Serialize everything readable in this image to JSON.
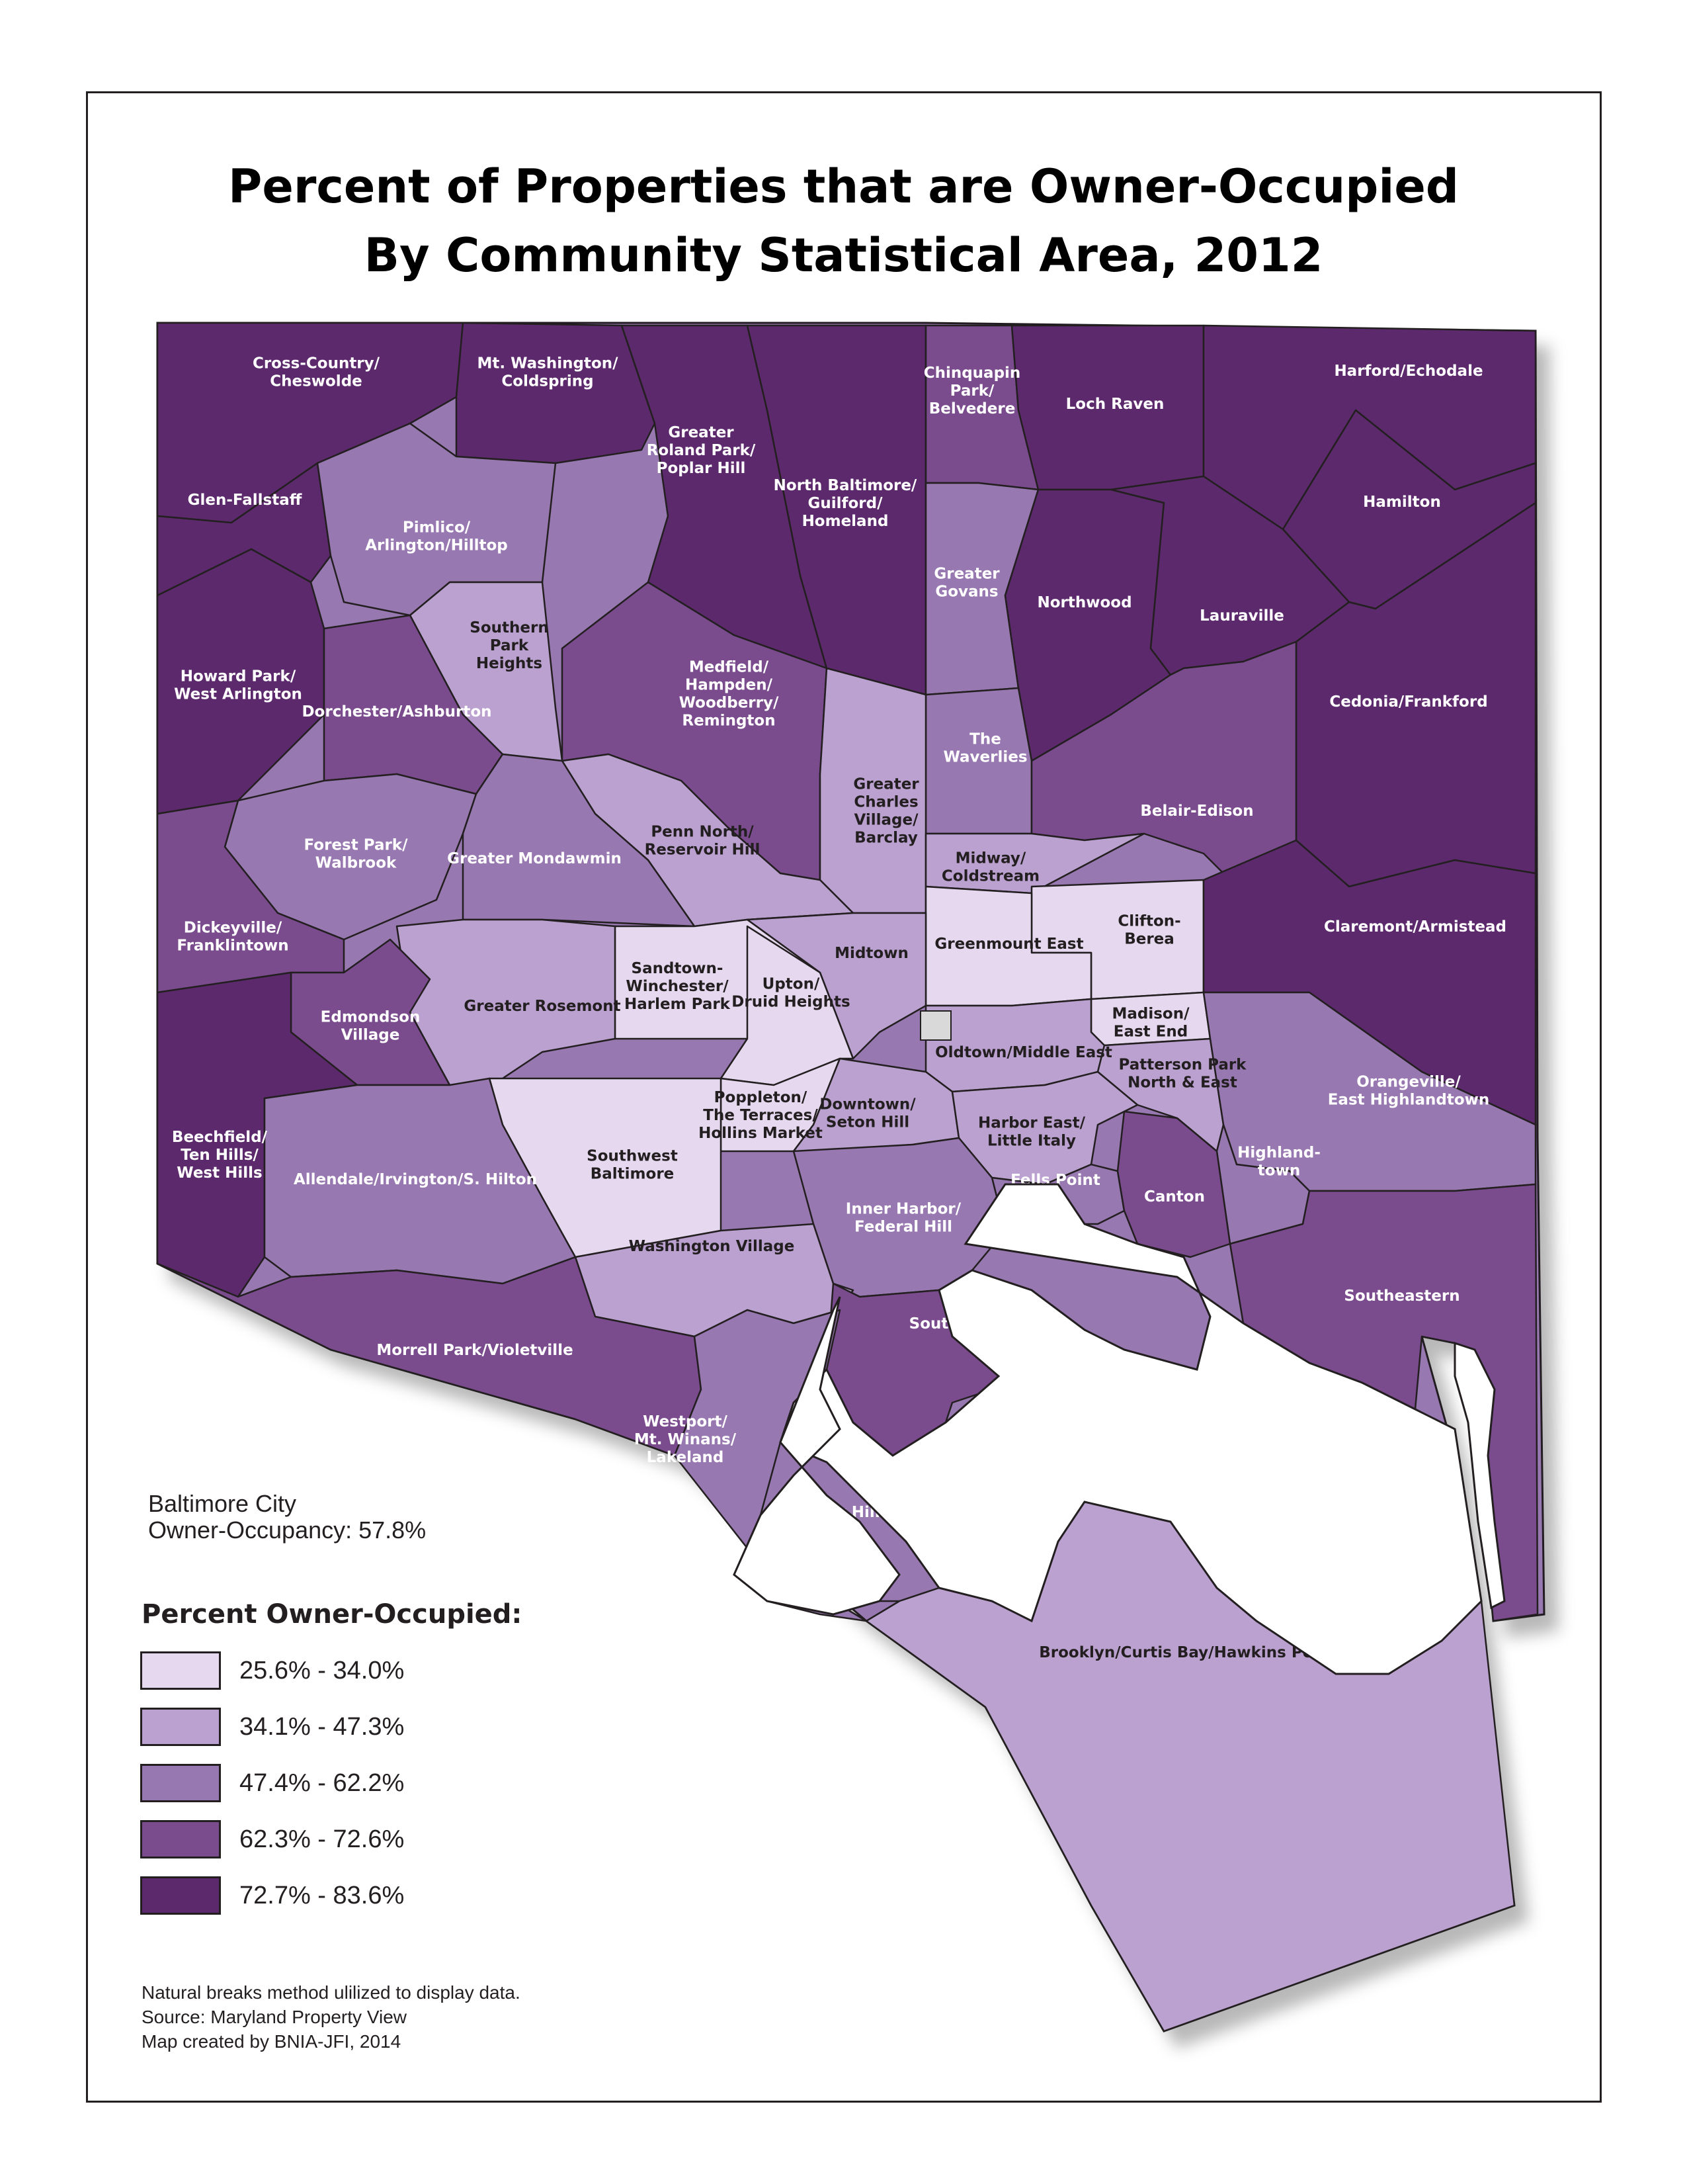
{
  "title": {
    "line1": "Percent of Properties that are Owner-Occupied",
    "line2": "By Community Statistical Area, 2012"
  },
  "city_summary": {
    "line1": "Baltimore City",
    "line2": "Owner-Occupancy: 57.8%"
  },
  "legend": {
    "title": "Percent Owner-Occupied:",
    "classes": [
      {
        "label": "25.6% - 34.0%",
        "color": "#e6d8ef"
      },
      {
        "label": "34.1% - 47.3%",
        "color": "#bba1cf"
      },
      {
        "label": "47.4% - 62.2%",
        "color": "#9878b0"
      },
      {
        "label": "62.3% - 72.6%",
        "color": "#7a4c8e"
      },
      {
        "label": "72.7% - 83.6%",
        "color": "#5c2a6c"
      }
    ]
  },
  "notes": [
    "Natural breaks method ulilized to display data.",
    "Source: Maryland Property View",
    "Map created by BNIA-JFI, 2014"
  ],
  "colors": {
    "class1": "#e6d8ef",
    "class2": "#bba1cf",
    "class3": "#9878b0",
    "class4": "#7a4c8e",
    "class5": "#5c2a6c",
    "border": "#231f20",
    "water": "#ffffff",
    "no_data": "#d9d9d9"
  },
  "areas": [
    {
      "name": "Cross-Country/\nCheswolde",
      "class": 5
    },
    {
      "name": "Mt. Washington/\nColdspring",
      "class": 5
    },
    {
      "name": "Greater\nRoland Park/\nPoplar Hill",
      "class": 5
    },
    {
      "name": "North Baltimore/\nGuilford/\nHomeland",
      "class": 5
    },
    {
      "name": "Chinquapin\nPark/\nBelvedere",
      "class": 4
    },
    {
      "name": "Loch Raven",
      "class": 5
    },
    {
      "name": "Harford/Echodale",
      "class": 5
    },
    {
      "name": "Glen-Fallstaff",
      "class": 5
    },
    {
      "name": "Pimlico/\nArlington/Hilltop",
      "class": 3
    },
    {
      "name": "Hamilton",
      "class": 5
    },
    {
      "name": "Southern\nPark\nHeights",
      "class": 2
    },
    {
      "name": "Greater\nGovans",
      "class": 3
    },
    {
      "name": "Northwood",
      "class": 5
    },
    {
      "name": "Lauraville",
      "class": 5
    },
    {
      "name": "Howard Park/\nWest Arlington",
      "class": 5
    },
    {
      "name": "Medfield/\nHampden/\nWoodberry/\nRemington",
      "class": 4
    },
    {
      "name": "Dorchester/Ashburton",
      "class": 4
    },
    {
      "name": "Cedonia/Frankford",
      "class": 5
    },
    {
      "name": "The\nWaverlies",
      "class": 3
    },
    {
      "name": "Greater\nCharles\nVillage/\nBarclay",
      "class": 2
    },
    {
      "name": "Belair-Edison",
      "class": 4
    },
    {
      "name": "Forest Park/\nWalbrook",
      "class": 3
    },
    {
      "name": "Penn North/\nReservoir Hill",
      "class": 2
    },
    {
      "name": "Greater Mondawmin",
      "class": 3
    },
    {
      "name": "Midway/\nColdstream",
      "class": 2
    },
    {
      "name": "Dickeyville/\nFranklintown",
      "class": 4
    },
    {
      "name": "Clifton-\nBerea",
      "class": 1
    },
    {
      "name": "Claremont/Armistead",
      "class": 5
    },
    {
      "name": "Greenmount East",
      "class": 1
    },
    {
      "name": "Midtown",
      "class": 2
    },
    {
      "name": "Sandtown-\nWinchester/\nHarlem Park",
      "class": 1
    },
    {
      "name": "Upton/\nDruid Heights",
      "class": 1
    },
    {
      "name": "Greater Rosemont",
      "class": 2
    },
    {
      "name": "Edmondson\nVillage",
      "class": 4
    },
    {
      "name": "Madison/\nEast End",
      "class": 1
    },
    {
      "name": "Oldtown/Middle East",
      "class": 2
    },
    {
      "name": "Patterson Park\nNorth & East",
      "class": 2
    },
    {
      "name": "Orangeville/\nEast Highlandtown",
      "class": 3
    },
    {
      "name": "Poppleton/\nThe Terraces/\nHollins Market",
      "class": 1
    },
    {
      "name": "Downtown/\nSeton Hill",
      "class": 2
    },
    {
      "name": "Harbor East/\nLittle Italy",
      "class": 2
    },
    {
      "name": "Beechfield/\nTen Hills/\nWest Hills",
      "class": 5
    },
    {
      "name": "Southwest\nBaltimore",
      "class": 1
    },
    {
      "name": "Highland-\ntown",
      "class": 3
    },
    {
      "name": "Allendale/Irvington/S. Hilton",
      "class": 3
    },
    {
      "name": "Fells Point",
      "class": 3
    },
    {
      "name": "Canton",
      "class": 4
    },
    {
      "name": "Inner Harbor/\nFederal Hill",
      "class": 3
    },
    {
      "name": "Washington Village",
      "class": 2
    },
    {
      "name": "Southeastern",
      "class": 4
    },
    {
      "name": "South Baltimore",
      "class": 4
    },
    {
      "name": "Morrell Park/Violetville",
      "class": 4
    },
    {
      "name": "Westport/\nMt. Winans/\nLakeland",
      "class": 3
    },
    {
      "name": "Cherry Hill",
      "class": 3
    },
    {
      "name": "Brooklyn/Curtis Bay/Hawkins Point",
      "class": 2
    }
  ]
}
